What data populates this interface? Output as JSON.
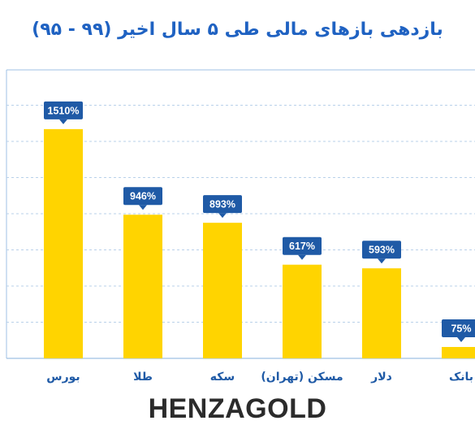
{
  "colors": {
    "title": "#1f62c2",
    "bar": "#ffd400",
    "badge": "#1f5aa6",
    "badge_text": "#ffffff",
    "grid": "#b9d1ea",
    "axis": "#9fc0e4",
    "category_text": "#1f5aa6",
    "brand": "#2b2b2b"
  },
  "brand": "HENZAGOLD",
  "chart_data": {
    "type": "bar",
    "title": "بازدهی بازهای مالی طی ۵ سال اخیر (۹۹ - ۹۵)",
    "categories": [
      "بورس",
      "طلا",
      "سکه",
      "مسکن (تهران)",
      "دلار",
      "بانک"
    ],
    "values": [
      1510,
      946,
      893,
      617,
      593,
      75
    ],
    "data_labels": [
      "1510%",
      "946%",
      "893%",
      "617%",
      "593%",
      "75%"
    ],
    "xlabel": "",
    "ylabel": "",
    "ylim": [
      0,
      1900
    ],
    "grid": true,
    "legend": "none"
  }
}
